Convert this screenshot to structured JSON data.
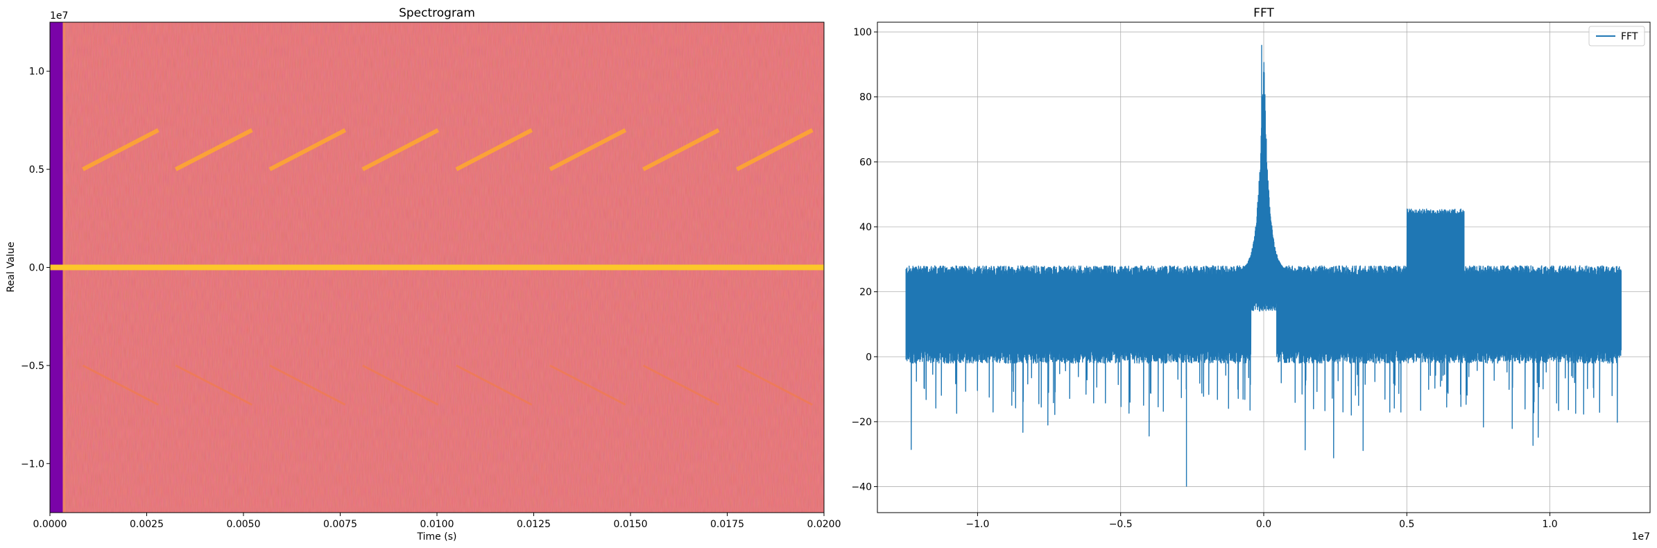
{
  "chart_data": [
    {
      "type": "heatmap",
      "title": "Spectrogram",
      "xlabel": "Time (s)",
      "ylabel": "Real Value",
      "xlim": [
        0,
        0.02
      ],
      "ylim": [
        -12500000,
        12500000
      ],
      "x_ticks": [
        "0.0000",
        "0.0025",
        "0.0050",
        "0.0075",
        "0.0100",
        "0.0125",
        "0.0150",
        "0.0175",
        "0.0200"
      ],
      "x_tick_values": [
        0,
        0.0025,
        0.005,
        0.0075,
        0.01,
        0.0125,
        0.015,
        0.0175,
        0.02
      ],
      "y_ticks": [
        "−1.0",
        "−0.5",
        "0.0",
        "0.5",
        "1.0"
      ],
      "y_tick_values": [
        -10000000,
        -5000000,
        0,
        5000000,
        10000000
      ],
      "y_offset_label": "1e7",
      "colormap": "plasma",
      "background_color": "#e3625f",
      "startup_band": {
        "x_start": 0,
        "x_end": 0.00033,
        "color": "#7a03a8"
      },
      "startup_edge": {
        "x": 0.00038,
        "color": "#f28e4f"
      },
      "carrier_line": {
        "y": 0,
        "color": "#fcc72a"
      },
      "chirps": [
        {
          "t_start": 0.00085,
          "t_end": 0.0028
        },
        {
          "t_start": 0.00325,
          "t_end": 0.00522
        },
        {
          "t_start": 0.00568,
          "t_end": 0.00763
        },
        {
          "t_start": 0.00808,
          "t_end": 0.01003
        },
        {
          "t_start": 0.0105,
          "t_end": 0.01245
        },
        {
          "t_start": 0.01292,
          "t_end": 0.01487
        },
        {
          "t_start": 0.01533,
          "t_end": 0.01728
        },
        {
          "t_start": 0.01775,
          "t_end": 0.0197
        }
      ],
      "chirp_freq_range": [
        5000000,
        7000000
      ],
      "chirp_color": "#fba238",
      "mirror_chirp_color": "#f07b52"
    },
    {
      "type": "line",
      "title": "FFT",
      "xlabel": "",
      "ylabel": "",
      "xlim": [
        -13500000,
        13500000
      ],
      "ylim": [
        -48,
        103
      ],
      "x_ticks": [
        "−1.0",
        "−0.5",
        "0.0",
        "0.5",
        "1.0"
      ],
      "x_tick_values": [
        -10000000,
        -5000000,
        0,
        5000000,
        10000000
      ],
      "x_offset_label": "1e7",
      "y_ticks": [
        "−40",
        "−20",
        "0",
        "20",
        "40",
        "60",
        "80",
        "100"
      ],
      "y_tick_values": [
        -40,
        -20,
        0,
        20,
        40,
        60,
        80,
        100
      ],
      "grid": true,
      "legend_position": "top-right",
      "series": [
        {
          "name": "FFT",
          "color": "#1f77b4",
          "x_range": [
            -12500000,
            12500000
          ],
          "noise_band_top_db": 26,
          "noise_band_bottom_db": 0,
          "noise_dips_min_db": -40,
          "dc_peak_db": 96,
          "dc_peak_x": 0,
          "plateau": {
            "x_start": 5000000,
            "x_end": 7000000,
            "level_db": 45
          },
          "dc_gap_level_db": 16
        }
      ]
    }
  ]
}
